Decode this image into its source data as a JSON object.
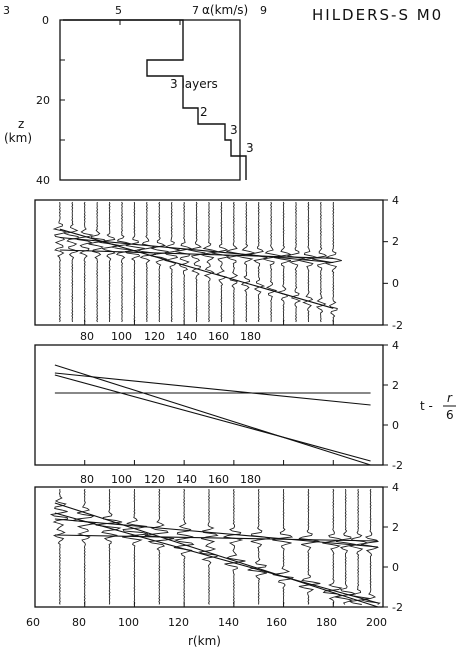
{
  "title": "HILDERS-S M0",
  "chart_data": [
    {
      "type": "line",
      "name": "velocity-depth",
      "xlabel": "α(km/s)",
      "ylabel": "z (km)",
      "ylabel_top": "z",
      "ylabel_unit": "(km)",
      "xlim": [
        3,
        9
      ],
      "ylim": [
        0,
        40
      ],
      "x_ticks": [
        "3",
        "5",
        "7",
        "9"
      ],
      "y_ticks": [
        "0",
        "20",
        "40"
      ],
      "x": [
        3.1,
        7.1,
        7.1,
        5.9,
        5.9,
        7.1,
        7.1,
        7.6,
        7.6,
        8.5,
        8.5,
        8.7,
        8.7,
        9.2,
        9.2
      ],
      "y": [
        0,
        0,
        10,
        10,
        14,
        14,
        22,
        22,
        26,
        26,
        30,
        30,
        34,
        34,
        40
      ],
      "annotations": [
        "3 layers",
        "2",
        "3",
        "3"
      ]
    },
    {
      "type": "line",
      "name": "seismogram-section-observed",
      "xlim": [
        60,
        200
      ],
      "ylim": [
        -2,
        4
      ],
      "x_ticks": [
        "80",
        "100",
        "120",
        "140",
        "160",
        "180"
      ],
      "y_ticks": [
        "4",
        "2",
        "0",
        "-2"
      ],
      "trace_offsets_km": [
        70,
        75,
        80,
        85,
        90,
        95,
        100,
        105,
        110,
        115,
        120,
        125,
        130,
        135,
        140,
        145,
        150,
        155,
        160,
        165,
        170,
        175,
        180
      ],
      "series": [
        {
          "x": [
            70,
            180
          ],
          "y": [
            2.2,
            1.0
          ]
        },
        {
          "x": [
            70,
            180
          ],
          "y": [
            2.6,
            -1.2
          ]
        },
        {
          "x": [
            70,
            180
          ],
          "y": [
            1.6,
            1.2
          ]
        }
      ]
    },
    {
      "type": "line",
      "name": "travel-time-curves",
      "ylabel": "t - r/6",
      "ylabel_main": "t -",
      "ylabel_num": "r",
      "ylabel_den": "6",
      "xlim": [
        60,
        200
      ],
      "ylim": [
        -2,
        4
      ],
      "x_ticks": [
        "80",
        "100",
        "120",
        "140",
        "160",
        "180"
      ],
      "y_ticks": [
        "4",
        "2",
        "0",
        "-2"
      ],
      "series": [
        {
          "x": [
            68,
            195
          ],
          "y": [
            3.0,
            -2.0
          ]
        },
        {
          "x": [
            68,
            195
          ],
          "y": [
            2.5,
            -1.8
          ]
        },
        {
          "x": [
            68,
            195
          ],
          "y": [
            1.6,
            1.6
          ]
        },
        {
          "x": [
            68,
            195
          ],
          "y": [
            2.6,
            1.0
          ]
        }
      ]
    },
    {
      "type": "line",
      "name": "synthetic-seismograms",
      "xlabel": "r(km)",
      "xlim": [
        60,
        200
      ],
      "ylim": [
        -2,
        4
      ],
      "x_ticks": [
        "60",
        "80",
        "100",
        "120",
        "140",
        "160",
        "180",
        "200"
      ],
      "y_ticks": [
        "4",
        "2",
        "0",
        "-2"
      ],
      "trace_offsets_km": [
        70,
        80,
        90,
        100,
        110,
        120,
        130,
        140,
        150,
        160,
        170,
        180,
        185,
        190,
        195
      ],
      "series": [
        {
          "x": [
            68,
            198
          ],
          "y": [
            3.2,
            -2.0
          ]
        },
        {
          "x": [
            68,
            198
          ],
          "y": [
            2.7,
            -1.8
          ]
        },
        {
          "x": [
            68,
            198
          ],
          "y": [
            1.6,
            1.3
          ]
        },
        {
          "x": [
            68,
            198
          ],
          "y": [
            2.4,
            1.0
          ]
        }
      ]
    }
  ]
}
